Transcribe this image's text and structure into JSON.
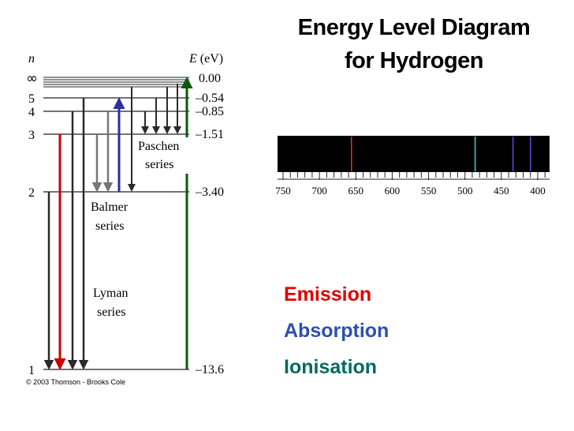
{
  "title": {
    "line1": "Energy Level Diagram",
    "line2": "for Hydrogen"
  },
  "diagram": {
    "n_header": "n",
    "e_header": "E (eV)",
    "levels": [
      {
        "n": "∞",
        "energy": "0.00"
      },
      {
        "n": "5",
        "energy": "–0.54"
      },
      {
        "n": "4",
        "energy": "–0.85"
      },
      {
        "n": "3",
        "energy": "–1.51"
      },
      {
        "n": "2",
        "energy": "–3.40"
      },
      {
        "n": "1",
        "energy": "–13.6"
      }
    ],
    "series_labels": {
      "paschen": [
        "Paschen",
        "series"
      ],
      "balmer": [
        "Balmer",
        "series"
      ],
      "lyman": [
        "Lyman",
        "series"
      ]
    },
    "copyright": "© 2003 Thomson - Brooks Cole",
    "colors": {
      "emission": "#cc0000",
      "absorption": "#2e2e9e",
      "ionisation": "#0a5a0a",
      "gray": "#777777",
      "dark": "#2a2a2a"
    }
  },
  "spectrum": {
    "axis_unit": "nm",
    "tick_labels": [
      "750",
      "700",
      "650",
      "600",
      "550",
      "500",
      "450",
      "400"
    ],
    "lines": [
      {
        "wavelength": 656,
        "color": "#d83020"
      },
      {
        "wavelength": 486,
        "color": "#40c8c8"
      },
      {
        "wavelength": 434,
        "color": "#6a3ad0"
      },
      {
        "wavelength": 410,
        "color": "#6a3ad0"
      }
    ]
  },
  "legend": {
    "emission": {
      "label": "Emission",
      "color": "#e00000"
    },
    "absorption": {
      "label": "Absorption",
      "color": "#2d4fb5"
    },
    "ionisation": {
      "label": "Ionisation",
      "color": "#006b63"
    }
  }
}
